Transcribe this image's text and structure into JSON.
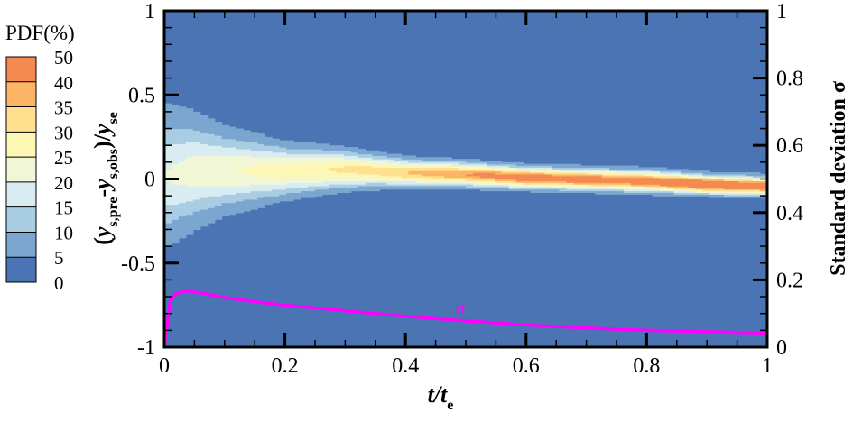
{
  "chart_data": {
    "type": "heatmap",
    "xlabel_main": "t/t",
    "xlabel_sub": "e",
    "ylabel": "(y s,pre - y s,obs)/y se",
    "ylabel_parts": [
      "(",
      "y",
      "s,pre",
      "-",
      "y",
      "s,obs",
      ")/",
      "y",
      "se"
    ],
    "y2label": "Standard deviation σ",
    "xlim": [
      0,
      1
    ],
    "ylim": [
      -1,
      1
    ],
    "y2lim": [
      0,
      1
    ],
    "xticks": [
      "0",
      "0.2",
      "0.4",
      "0.6",
      "0.8",
      "1"
    ],
    "yticks": [
      "-1",
      "-0.5",
      "0",
      "0.5",
      "1"
    ],
    "y2ticks": [
      "0",
      "0.2",
      "0.4",
      "0.6",
      "0.8",
      "1"
    ],
    "colorbar": {
      "title": "PDF(%)",
      "levels": [
        0,
        5,
        10,
        15,
        20,
        25,
        30,
        35,
        40,
        50
      ],
      "level_labels": [
        "0",
        "5",
        "10",
        "15",
        "20",
        "25",
        "30",
        "35",
        "40",
        "50"
      ],
      "colors": [
        "#4a74b4",
        "#7aa6cf",
        "#a9cde3",
        "#d9ecf2",
        "#f1f7d6",
        "#fdf7b6",
        "#fee08f",
        "#fcb565",
        "#f48a52",
        "#d93b2b"
      ]
    },
    "background_color": "#4a74b4",
    "pdf_band": {
      "t": [
        0,
        0.05,
        0.1,
        0.2,
        0.3,
        0.4,
        0.5,
        0.6,
        0.7,
        0.8,
        0.9,
        1.0
      ],
      "center": [
        0.02,
        0.05,
        0.05,
        0.05,
        0.06,
        0.04,
        0.03,
        0.01,
        0.0,
        -0.01,
        -0.03,
        -0.04
      ],
      "spread": [
        0.2,
        0.17,
        0.13,
        0.09,
        0.07,
        0.05,
        0.045,
        0.04,
        0.04,
        0.04,
        0.035,
        0.035
      ],
      "peak": [
        14,
        17,
        20,
        25,
        30,
        35,
        40,
        45,
        44,
        44,
        50,
        46
      ]
    },
    "sigma_series": {
      "name": "σ",
      "label": "σ",
      "color": "#ff00ff",
      "t": [
        0,
        0.01,
        0.02,
        0.04,
        0.07,
        0.1,
        0.15,
        0.2,
        0.3,
        0.4,
        0.5,
        0.6,
        0.7,
        0.8,
        0.9,
        1.0
      ],
      "sigma": [
        0,
        0.14,
        0.16,
        0.167,
        0.158,
        0.148,
        0.135,
        0.125,
        0.108,
        0.092,
        0.078,
        0.066,
        0.057,
        0.05,
        0.046,
        0.042
      ]
    }
  }
}
